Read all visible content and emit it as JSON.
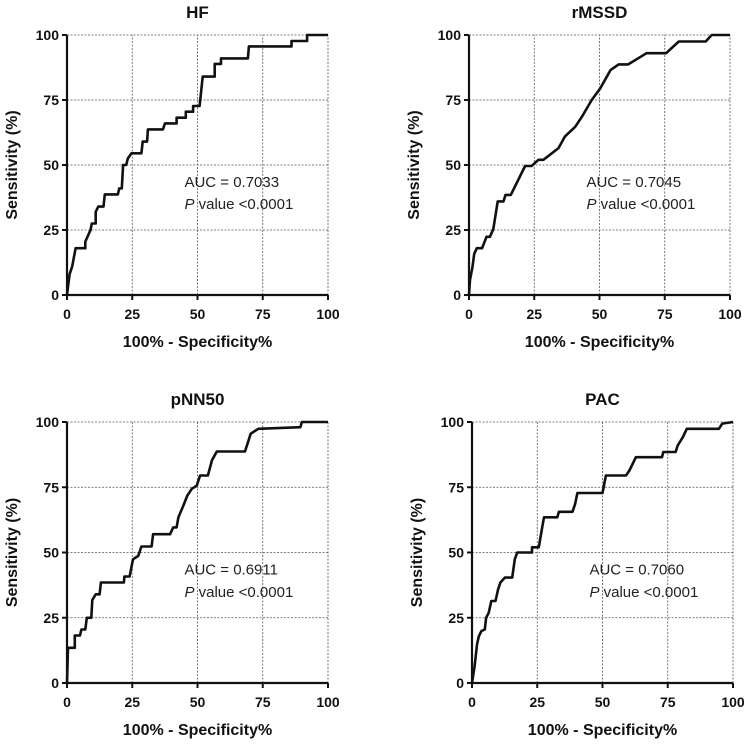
{
  "chart_data": [
    {
      "type": "line",
      "title": "HF",
      "xlabel": "100% - Specificity%",
      "ylabel": "Sensitivity (%)",
      "xlim": [
        0,
        100
      ],
      "ylim": [
        0,
        100
      ],
      "xticks": [
        "0",
        "25",
        "50",
        "75",
        "100"
      ],
      "yticks": [
        "0",
        "25",
        "50",
        "75",
        "100"
      ],
      "grid": true,
      "annotation": {
        "auc": "AUC = 0.7033",
        "p_italic": "P",
        "p_rest": " value <0.0001"
      },
      "x": [
        0,
        1,
        2,
        3.3,
        7,
        7,
        9,
        9.5,
        11,
        11,
        12,
        14,
        14.5,
        19.5,
        20,
        21,
        21.5,
        22.7,
        23.3,
        24.7,
        28.5,
        29,
        30.7,
        31,
        36.8,
        37.5,
        42,
        42,
        45.5,
        45.5,
        48.3,
        48.3,
        50.8,
        52,
        56.6,
        56.6,
        59,
        59,
        69.3,
        69.7,
        86,
        86,
        92,
        92,
        100
      ],
      "y": [
        0,
        8,
        11,
        18,
        18,
        20.5,
        25,
        27.5,
        27.5,
        32,
        34,
        34,
        38.7,
        38.7,
        41,
        41,
        50,
        50,
        52.5,
        54.5,
        54.5,
        59,
        59,
        63.7,
        63.7,
        66,
        66,
        68.2,
        68.2,
        70.5,
        70.5,
        72.7,
        72.7,
        84,
        84,
        88.9,
        88.9,
        91,
        91,
        95.6,
        95.6,
        97.7,
        97.7,
        100,
        100
      ]
    },
    {
      "type": "line",
      "title": "rMSSD",
      "xlabel": "100% - Specificity%",
      "ylabel": "Sensitivity (%)",
      "xlim": [
        0,
        100
      ],
      "ylim": [
        0,
        100
      ],
      "xticks": [
        "0",
        "25",
        "50",
        "75",
        "100"
      ],
      "yticks": [
        "0",
        "25",
        "50",
        "75",
        "100"
      ],
      "grid": true,
      "annotation": {
        "auc": "AUC = 0.7045",
        "p_italic": "P",
        "p_rest": " value <0.0001"
      },
      "x": [
        0,
        0.4,
        1.3,
        2,
        3,
        5,
        6.7,
        8,
        9.3,
        11,
        13.2,
        14,
        16,
        21.5,
        24,
        26.6,
        28.5,
        34.3,
        36.8,
        40.7,
        43.3,
        47,
        50.3,
        54.2,
        57.3,
        61,
        68,
        75.5,
        80.4,
        90.7,
        93,
        100
      ],
      "y": [
        0,
        5.8,
        10.6,
        15.8,
        18,
        18,
        22.4,
        22.4,
        25.3,
        36,
        36,
        38.5,
        38.5,
        49.6,
        49.6,
        52,
        52,
        56.5,
        61,
        64.7,
        68.6,
        75,
        79.5,
        86.5,
        88.7,
        88.7,
        93,
        93,
        97.5,
        97.5,
        100,
        100
      ]
    },
    {
      "type": "line",
      "title": "pNN50",
      "xlabel": "100% - Specificity%",
      "ylabel": "Sensitivity (%)",
      "xlim": [
        0,
        100
      ],
      "ylim": [
        0,
        100
      ],
      "xticks": [
        "0",
        "25",
        "50",
        "75",
        "100"
      ],
      "yticks": [
        "0",
        "25",
        "50",
        "75",
        "100"
      ],
      "grid": true,
      "annotation": {
        "auc": "AUC = 0.6911",
        "p_italic": "P",
        "p_rest": " value <0.0001"
      },
      "x": [
        0,
        0.4,
        3,
        3,
        5,
        5.5,
        7,
        7.6,
        9.3,
        9.7,
        11,
        12.5,
        13,
        21.8,
        22,
        24,
        25.3,
        27.3,
        28.5,
        32.4,
        33,
        39.5,
        40.7,
        42,
        42.7,
        44.6,
        46.1,
        47.8,
        49.7,
        51,
        54,
        55.5,
        57.4,
        68.2,
        70.4,
        73.3,
        89.4,
        90,
        100
      ],
      "y": [
        0,
        13.5,
        13.5,
        18.2,
        18.2,
        20.5,
        20.5,
        25,
        25,
        31.8,
        34,
        34,
        38.5,
        38.5,
        40.8,
        40.8,
        47.4,
        48.7,
        52.3,
        52.3,
        57,
        57,
        59.6,
        59.6,
        63.5,
        68,
        71.8,
        74.4,
        75.6,
        79.5,
        79.5,
        85.3,
        88.7,
        88.7,
        95.5,
        97.4,
        98,
        100,
        100
      ]
    },
    {
      "type": "line",
      "title": "PAC",
      "xlabel": "100% - Specificity%",
      "ylabel": "Sensitivity (%)",
      "xlim": [
        0,
        100
      ],
      "ylim": [
        0,
        100
      ],
      "xticks": [
        "0",
        "25",
        "50",
        "75",
        "100"
      ],
      "yticks": [
        "0",
        "25",
        "50",
        "75",
        "100"
      ],
      "grid": true,
      "annotation": {
        "auc": "AUC = 0.7060",
        "p_italic": "P",
        "p_rest": " value <0.0001"
      },
      "x": [
        0,
        1,
        1.9,
        2.6,
        3.6,
        4.9,
        5.4,
        6.4,
        7.4,
        9,
        10,
        10.9,
        12.6,
        15.4,
        16.4,
        17.3,
        23,
        23,
        25.6,
        26.9,
        27.6,
        32.7,
        33.3,
        38.5,
        39.5,
        40.4,
        50,
        51.3,
        59,
        60.3,
        62.8,
        72.8,
        73.3,
        78,
        78.8,
        80.8,
        82.3,
        94.6,
        95.9,
        100
      ],
      "y": [
        0,
        6.4,
        14.7,
        17.9,
        19.9,
        20.5,
        25,
        26.9,
        31.4,
        31.4,
        35.9,
        38.5,
        40.4,
        40.4,
        47.4,
        50,
        50,
        52,
        52,
        59.6,
        63.5,
        63.5,
        65.6,
        65.6,
        68.6,
        72.8,
        72.8,
        79.5,
        79.5,
        81.4,
        86.5,
        86.5,
        88.5,
        88.5,
        91,
        94.2,
        97.4,
        97.4,
        99.4,
        100
      ]
    }
  ]
}
